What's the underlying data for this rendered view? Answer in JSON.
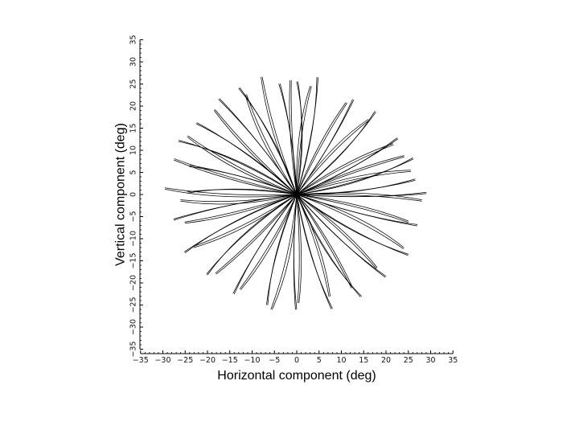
{
  "chart_data": {
    "type": "line",
    "title": "",
    "xlabel": "Horizontal component (deg)",
    "ylabel": "Vertical component (deg)",
    "xlim": [
      -35,
      35
    ],
    "ylim": [
      -35,
      35
    ],
    "xticks": [
      -35,
      -30,
      -25,
      -20,
      -15,
      -10,
      -5,
      0,
      5,
      10,
      15,
      20,
      25,
      30,
      35
    ],
    "yticks": [
      -35,
      -30,
      -25,
      -20,
      -15,
      -10,
      -5,
      0,
      5,
      10,
      15,
      20,
      25,
      30,
      35
    ],
    "grid": false,
    "legend": "none",
    "trace_color": "#000000",
    "description_of_series": "Saccade trajectories radiating from the origin",
    "endpoints": [
      {
        "x": 29.0,
        "y": 0.5
      },
      {
        "x": 28.0,
        "y": -1.2
      },
      {
        "x": 26.5,
        "y": 3.5
      },
      {
        "x": 25.5,
        "y": 5.5
      },
      {
        "x": 26.0,
        "y": 8.3
      },
      {
        "x": 24.0,
        "y": 8.8
      },
      {
        "x": 22.5,
        "y": 12.8
      },
      {
        "x": 21.5,
        "y": 11.5
      },
      {
        "x": 17.5,
        "y": 18.8
      },
      {
        "x": 16.0,
        "y": 17.0
      },
      {
        "x": 12.5,
        "y": 21.5
      },
      {
        "x": 11.0,
        "y": 20.8
      },
      {
        "x": 4.5,
        "y": 26.5
      },
      {
        "x": 3.0,
        "y": 24.5
      },
      {
        "x": 0.0,
        "y": 25.5
      },
      {
        "x": -1.5,
        "y": 25.8
      },
      {
        "x": -4.0,
        "y": 25.0
      },
      {
        "x": -8.0,
        "y": 26.5
      },
      {
        "x": -13.0,
        "y": 24.0
      },
      {
        "x": -11.5,
        "y": 22.5
      },
      {
        "x": -17.5,
        "y": 21.5
      },
      {
        "x": -18.5,
        "y": 19.0
      },
      {
        "x": -22.5,
        "y": 16.0
      },
      {
        "x": -24.5,
        "y": 13.0
      },
      {
        "x": -26.5,
        "y": 12.0
      },
      {
        "x": -27.5,
        "y": 7.8
      },
      {
        "x": -24.0,
        "y": 6.3
      },
      {
        "x": -29.5,
        "y": 1.2
      },
      {
        "x": -24.5,
        "y": 0.3
      },
      {
        "x": -26.0,
        "y": -1.5
      },
      {
        "x": -27.5,
        "y": -5.8
      },
      {
        "x": -25.0,
        "y": -6.5
      },
      {
        "x": -25.0,
        "y": -13.2
      },
      {
        "x": -23.0,
        "y": -12.0
      },
      {
        "x": -20.0,
        "y": -18.2
      },
      {
        "x": -18.0,
        "y": -18.0
      },
      {
        "x": -14.0,
        "y": -22.5
      },
      {
        "x": -12.5,
        "y": -21.5
      },
      {
        "x": -6.5,
        "y": -25.0
      },
      {
        "x": -5.5,
        "y": -26.0
      },
      {
        "x": 0.0,
        "y": -26.0
      },
      {
        "x": 0.5,
        "y": -24.5
      },
      {
        "x": 8.0,
        "y": -25.8
      },
      {
        "x": 7.5,
        "y": -23.0
      },
      {
        "x": 14.5,
        "y": -23.0
      },
      {
        "x": 12.5,
        "y": -21.0
      },
      {
        "x": 20.0,
        "y": -18.5
      },
      {
        "x": 18.0,
        "y": -16.5
      },
      {
        "x": 25.0,
        "y": -13.5
      },
      {
        "x": 24.0,
        "y": -12.0
      },
      {
        "x": 27.0,
        "y": -6.8
      },
      {
        "x": 25.0,
        "y": -6.0
      }
    ]
  }
}
